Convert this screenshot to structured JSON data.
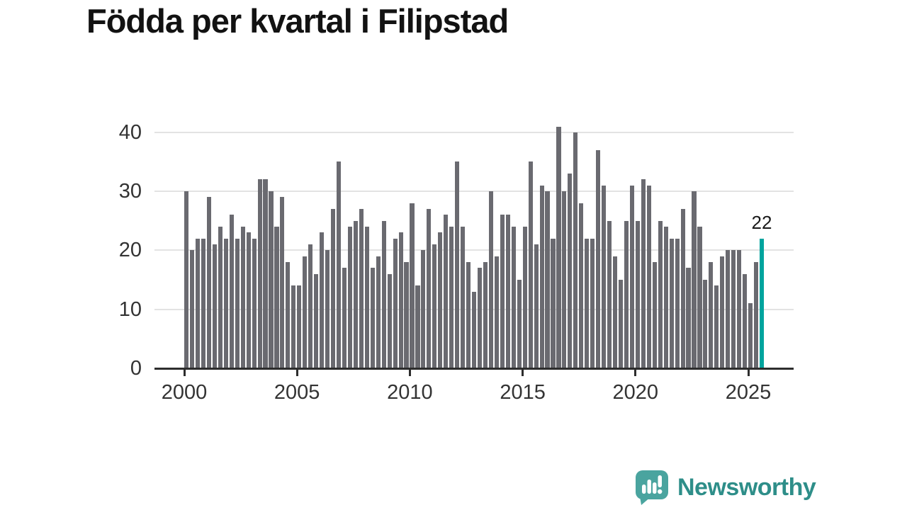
{
  "title": "Födda per kvartal i Filipstad",
  "chart_data": {
    "type": "bar",
    "title": "Födda per kvartal i Filipstad",
    "frequency": "quarterly",
    "start_year": 2000,
    "start_quarter": 1,
    "values": [
      30,
      20,
      22,
      22,
      29,
      21,
      24,
      22,
      26,
      22,
      24,
      23,
      22,
      32,
      32,
      30,
      24,
      29,
      18,
      14,
      14,
      19,
      21,
      16,
      23,
      20,
      27,
      35,
      17,
      24,
      25,
      27,
      24,
      17,
      19,
      25,
      16,
      22,
      23,
      18,
      28,
      14,
      20,
      27,
      21,
      23,
      26,
      24,
      35,
      24,
      18,
      13,
      17,
      18,
      30,
      19,
      26,
      26,
      24,
      15,
      24,
      35,
      21,
      31,
      30,
      22,
      41,
      30,
      33,
      40,
      28,
      22,
      22,
      37,
      31,
      25,
      19,
      15,
      25,
      31,
      25,
      32,
      31,
      18,
      25,
      24,
      22,
      22,
      27,
      17,
      30,
      24,
      15,
      18,
      14,
      19,
      20,
      20,
      20,
      16,
      11,
      18,
      22
    ],
    "highlight_last": true,
    "highlight_value_label": "22",
    "x_tick_years": [
      2000,
      2005,
      2010,
      2015,
      2020,
      2025
    ],
    "y_ticks": [
      0,
      10,
      20,
      30,
      40
    ],
    "ylim": [
      0,
      42
    ],
    "grid": "horizontal",
    "legend": "none",
    "bar_color": "#6a6a70",
    "highlight_color": "#00a49e",
    "gridline_color": "#e3e3e3",
    "axis_color": "#2d2d2d",
    "tick_label_color": "#333333"
  },
  "branding": {
    "logo_text": "Newsworthy",
    "logo_color": "#4aa49f",
    "logo_text_color": "#2e8e89"
  }
}
